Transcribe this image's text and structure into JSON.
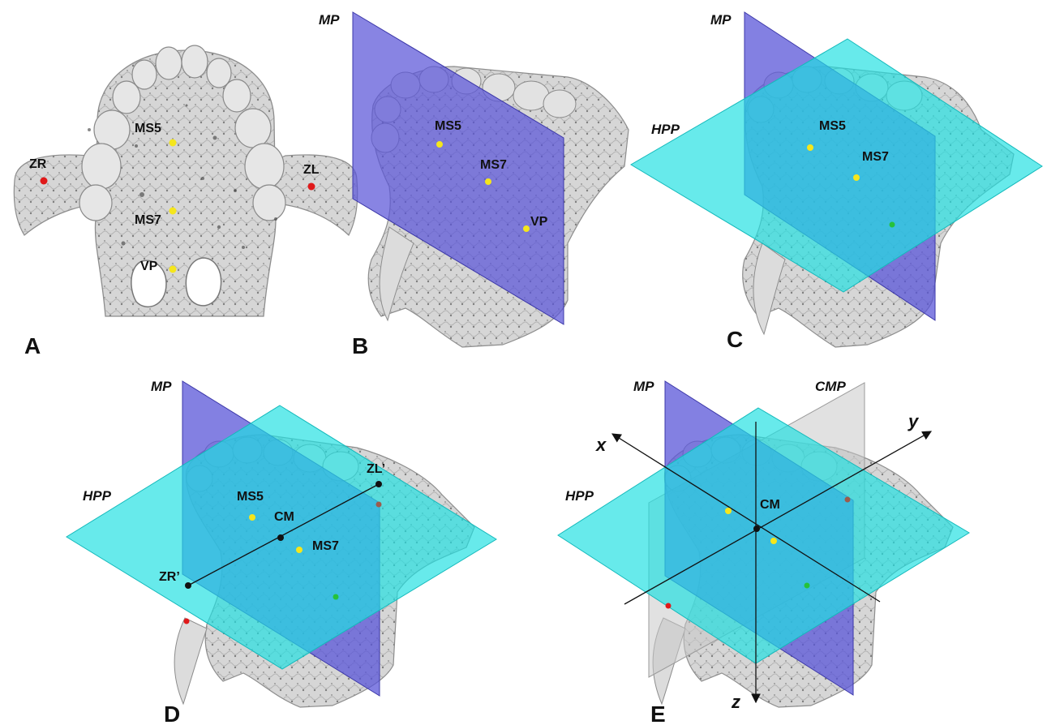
{
  "colors": {
    "median_plane": "#5a55d8",
    "hpp_plane": "#1fe0e2",
    "cmp_plane": "#c8c8c8",
    "bone": "#d4d4d4",
    "bone_edge": "#8d8d8d",
    "landmark_yellow": "#f5e61c",
    "landmark_red": "#e0191a",
    "landmark_black": "#111111",
    "landmark_green": "#25c23b"
  },
  "panels": {
    "A": {
      "letter": "A",
      "points": {
        "ms5": "MS5",
        "ms7": "MS7",
        "vp": "VP",
        "zr": "ZR",
        "zl": "ZL"
      }
    },
    "B": {
      "letter": "B",
      "plane_mp": "MP",
      "points": {
        "ms5": "MS5",
        "ms7": "MS7",
        "vp": "VP"
      }
    },
    "C": {
      "letter": "C",
      "plane_mp": "MP",
      "plane_hpp": "HPP",
      "points": {
        "ms5": "MS5",
        "ms7": "MS7"
      }
    },
    "D": {
      "letter": "D",
      "plane_mp": "MP",
      "plane_hpp": "HPP",
      "points": {
        "ms5": "MS5",
        "ms7": "MS7",
        "cm": "CM",
        "zl_prime": "ZL’",
        "zr_prime": "ZR’"
      }
    },
    "E": {
      "letter": "E",
      "plane_mp": "MP",
      "plane_hpp": "HPP",
      "plane_cmp": "CMP",
      "points": {
        "cm": "CM"
      },
      "axes": {
        "x": "x",
        "y": "y",
        "z": "z"
      }
    }
  }
}
